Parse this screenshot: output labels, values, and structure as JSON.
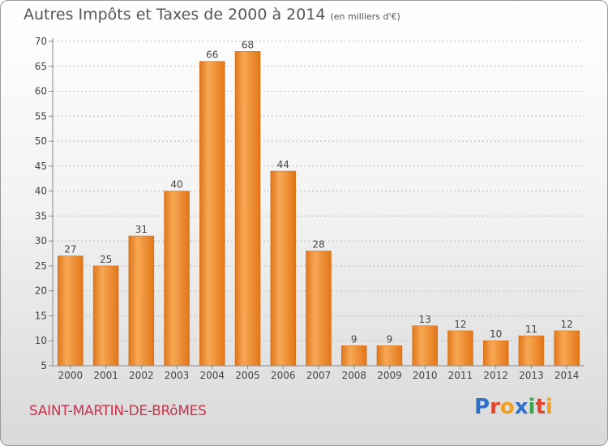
{
  "title": "Autres Impôts et Taxes de 2000 à 2014",
  "unit": "(en milliers d'€)",
  "commune": "SAINT-MARTIN-DE-BRôMES",
  "logo": {
    "letters": [
      "P",
      "r",
      "o",
      "x",
      "i",
      "t",
      "i"
    ],
    "colors": [
      "#2f6fc7",
      "#e0452b",
      "#f0a020",
      "#2f6fc7",
      "#3aa64a",
      "#e0452b",
      "#f0a020"
    ]
  },
  "chart_data": {
    "type": "bar",
    "title": "Autres Impôts et Taxes de 2000 à 2014",
    "categories": [
      "2000",
      "2001",
      "2002",
      "2003",
      "2004",
      "2005",
      "2006",
      "2007",
      "2008",
      "2009",
      "2010",
      "2011",
      "2012",
      "2013",
      "2014"
    ],
    "values": [
      27,
      25,
      31,
      40,
      66,
      68,
      44,
      28,
      9,
      9,
      13,
      12,
      10,
      11,
      12
    ],
    "ylim": [
      5,
      70
    ],
    "yticks": [
      5,
      10,
      15,
      20,
      25,
      30,
      35,
      40,
      45,
      50,
      55,
      60,
      65,
      70
    ],
    "grid": true,
    "bar_color": "#f08a2a"
  }
}
